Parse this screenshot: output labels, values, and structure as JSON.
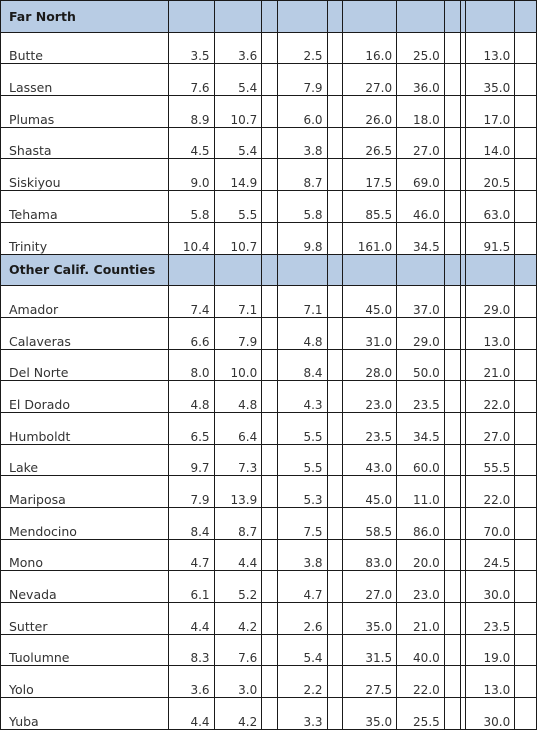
{
  "sections": [
    {
      "title": "Far North",
      "rows": [
        {
          "county": "Butte",
          "v1": "3.5",
          "v2": "3.6",
          "v3": "2.5",
          "v4": "16.0",
          "v5": "25.0",
          "v6": "13.0"
        },
        {
          "county": "Lassen",
          "v1": "7.6",
          "v2": "5.4",
          "v3": "7.9",
          "v4": "27.0",
          "v5": "36.0",
          "v6": "35.0"
        },
        {
          "county": "Plumas",
          "v1": "8.9",
          "v2": "10.7",
          "v3": "6.0",
          "v4": "26.0",
          "v5": "18.0",
          "v6": "17.0"
        },
        {
          "county": "Shasta",
          "v1": "4.5",
          "v2": "5.4",
          "v3": "3.8",
          "v4": "26.5",
          "v5": "27.0",
          "v6": "14.0"
        },
        {
          "county": "Siskiyou",
          "v1": "9.0",
          "v2": "14.9",
          "v3": "8.7",
          "v4": "17.5",
          "v5": "69.0",
          "v6": "20.5"
        },
        {
          "county": "Tehama",
          "v1": "5.8",
          "v2": "5.5",
          "v3": "5.8",
          "v4": "85.5",
          "v5": "46.0",
          "v6": "63.0"
        },
        {
          "county": "Trinity",
          "v1": "10.4",
          "v2": "10.7",
          "v3": "9.8",
          "v4": "161.0",
          "v5": "34.5",
          "v6": "91.5"
        }
      ]
    },
    {
      "title": "Other Calif. Counties",
      "rows": [
        {
          "county": "Amador",
          "v1": "7.4",
          "v2": "7.1",
          "v3": "7.1",
          "v4": "45.0",
          "v5": "37.0",
          "v6": "29.0"
        },
        {
          "county": "Calaveras",
          "v1": "6.6",
          "v2": "7.9",
          "v3": "4.8",
          "v4": "31.0",
          "v5": "29.0",
          "v6": "13.0"
        },
        {
          "county": "Del Norte",
          "v1": "8.0",
          "v2": "10.0",
          "v3": "8.4",
          "v4": "28.0",
          "v5": "50.0",
          "v6": "21.0"
        },
        {
          "county": "El Dorado",
          "v1": "4.8",
          "v2": "4.8",
          "v3": "4.3",
          "v4": "23.0",
          "v5": "23.5",
          "v6": "22.0"
        },
        {
          "county": "Humboldt",
          "v1": "6.5",
          "v2": "6.4",
          "v3": "5.5",
          "v4": "23.5",
          "v5": "34.5",
          "v6": "27.0"
        },
        {
          "county": "Lake",
          "v1": "9.7",
          "v2": "7.3",
          "v3": "5.5",
          "v4": "43.0",
          "v5": "60.0",
          "v6": "55.5"
        },
        {
          "county": "Mariposa",
          "v1": "7.9",
          "v2": "13.9",
          "v3": "5.3",
          "v4": "45.0",
          "v5": "11.0",
          "v6": "22.0"
        },
        {
          "county": "Mendocino",
          "v1": "8.4",
          "v2": "8.7",
          "v3": "7.5",
          "v4": "58.5",
          "v5": "86.0",
          "v6": "70.0"
        },
        {
          "county": "Mono",
          "v1": "4.7",
          "v2": "4.4",
          "v3": "3.8",
          "v4": "83.0",
          "v5": "20.0",
          "v6": "24.5"
        },
        {
          "county": "Nevada",
          "v1": "6.1",
          "v2": "5.2",
          "v3": "4.7",
          "v4": "27.0",
          "v5": "23.0",
          "v6": "30.0"
        },
        {
          "county": "Sutter",
          "v1": "4.4",
          "v2": "4.2",
          "v3": "2.6",
          "v4": "35.0",
          "v5": "21.0",
          "v6": "23.5"
        },
        {
          "county": "Tuolumne",
          "v1": "8.3",
          "v2": "7.6",
          "v3": "5.4",
          "v4": "31.5",
          "v5": "40.0",
          "v6": "19.0"
        },
        {
          "county": "Yolo",
          "v1": "3.6",
          "v2": "3.0",
          "v3": "2.2",
          "v4": "27.5",
          "v5": "22.0",
          "v6": "13.0"
        },
        {
          "county": "Yuba",
          "v1": "4.4",
          "v2": "4.2",
          "v3": "3.3",
          "v4": "35.0",
          "v5": "25.5",
          "v6": "30.0"
        }
      ]
    }
  ],
  "colors": {
    "section_header_bg": "#b8cce4",
    "border": "#1a1a1a",
    "text": "#333333"
  }
}
